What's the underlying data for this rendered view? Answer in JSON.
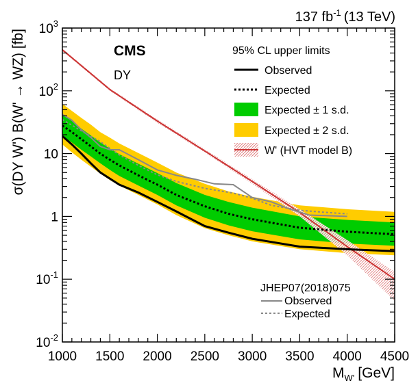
{
  "chart_data": {
    "type": "line",
    "lumi": "137 fb",
    "lumi_sup": "-1",
    "lumi_energy": "(13 TeV)",
    "experiment": "CMS",
    "channel": "DY",
    "xlabel": "M",
    "xlabel_sub": "W'",
    "xlabel_unit": "[GeV]",
    "ylabel": "σ(DY W') B(W' → WZ) [fb]",
    "xlim": [
      1000,
      4500
    ],
    "ylim": [
      0.01,
      1000
    ],
    "yscale": "log",
    "xticks": [
      1000,
      1500,
      2000,
      2500,
      3000,
      3500,
      4000,
      4500
    ],
    "xtick_labels": [
      "1000",
      "1500",
      "2000",
      "2500",
      "3000",
      "3500",
      "4000",
      "4500"
    ],
    "yticks": [
      {
        "value": 0.01,
        "base": "10",
        "exp": "-2"
      },
      {
        "value": 0.1,
        "base": "10",
        "exp": "-1"
      },
      {
        "value": 1,
        "base": "1",
        "exp": ""
      },
      {
        "value": 10,
        "base": "10",
        "exp": ""
      },
      {
        "value": 100,
        "base": "10",
        "exp": "2"
      },
      {
        "value": 1000,
        "base": "10",
        "exp": "3"
      }
    ],
    "legend_header": "95% CL upper limits",
    "legend": [
      {
        "label": "Observed",
        "style": "solid-black"
      },
      {
        "label": "Expected",
        "style": "dotted-black"
      },
      {
        "label": "Expected ± 1 s.d.",
        "style": "green-band"
      },
      {
        "label": "Expected ± 2 s.d.",
        "style": "yellow-band"
      },
      {
        "label": "W' (HVT model B)",
        "style": "red-hatched"
      }
    ],
    "ref_legend_header": "JHEP07(2018)075",
    "ref_legend": [
      {
        "label": "Observed",
        "style": "solid-gray"
      },
      {
        "label": "Expected",
        "style": "dashed-gray"
      }
    ],
    "colors": {
      "band2": "#ffcc00",
      "band1": "#00cc00",
      "theory": "#cc3333",
      "ref": "#888888"
    },
    "x": [
      1000,
      1100,
      1200,
      1300,
      1400,
      1500,
      1600,
      1800,
      2000,
      2200,
      2500,
      2750,
      3000,
      3500,
      4000,
      4500
    ],
    "series": [
      {
        "name": "Observed",
        "values": [
          19,
          14,
          10,
          7,
          5,
          4,
          3.2,
          2.4,
          1.7,
          1.2,
          0.7,
          0.55,
          0.44,
          0.33,
          0.3,
          0.28
        ]
      },
      {
        "name": "Expected",
        "values": [
          28,
          22,
          17,
          13,
          10,
          8,
          6.5,
          4.5,
          3.2,
          2.2,
          1.45,
          1.1,
          0.9,
          0.66,
          0.57,
          0.52
        ]
      }
    ],
    "band_1sd": {
      "low": [
        19,
        15,
        11.5,
        9,
        7,
        5.5,
        4.4,
        3.1,
        2.2,
        1.5,
        0.95,
        0.72,
        0.58,
        0.43,
        0.37,
        0.34
      ],
      "high": [
        42,
        33,
        25,
        19.5,
        15,
        12,
        9.8,
        6.9,
        4.9,
        3.4,
        2.2,
        1.7,
        1.38,
        1.0,
        0.88,
        0.8
      ]
    },
    "band_2sd": {
      "low": [
        14,
        10.5,
        8,
        6.2,
        4.8,
        3.8,
        3.1,
        2.2,
        1.55,
        1.05,
        0.65,
        0.5,
        0.4,
        0.3,
        0.26,
        0.24
      ],
      "high": [
        62,
        48,
        37,
        29,
        22,
        18,
        14.5,
        10.2,
        7.2,
        5.0,
        3.3,
        2.5,
        2.05,
        1.5,
        1.3,
        1.18
      ]
    },
    "theory": {
      "name": "W' (HVT model B)",
      "x": [
        1000,
        1500,
        2000,
        2500,
        3000,
        3500,
        4000,
        4500
      ],
      "values": [
        450,
        105,
        33,
        11,
        3.6,
        1.15,
        0.33,
        0.1
      ],
      "unc_low": [
        430,
        100,
        31,
        10.4,
        3.3,
        1.0,
        0.24,
        0.045
      ],
      "unc_high": [
        470,
        110,
        35,
        11.7,
        3.9,
        1.3,
        0.42,
        0.13
      ]
    },
    "reference": {
      "name": "JHEP07(2018)075",
      "observed": {
        "x": [
          1000,
          1100,
          1200,
          1300,
          1400,
          1500,
          1600,
          1800,
          2000,
          2200,
          2400,
          2600,
          2800,
          3000,
          3200,
          3400,
          3600,
          4000
        ],
        "values": [
          42,
          34,
          24,
          18,
          13,
          11.5,
          11.5,
          8,
          5.5,
          4.5,
          3.9,
          3.3,
          3.2,
          2.0,
          1.7,
          1.3,
          1.05,
          1.0
        ]
      },
      "expected": {
        "x": [
          1000,
          1200,
          1400,
          1600,
          1800,
          2000,
          2200,
          2500,
          2800,
          3000,
          3200,
          3500,
          3800,
          4000
        ],
        "values": [
          35,
          23,
          15.5,
          9.5,
          6.5,
          4.6,
          3.6,
          2.8,
          2.35,
          1.95,
          1.5,
          1.25,
          1.15,
          1.1
        ]
      }
    }
  }
}
